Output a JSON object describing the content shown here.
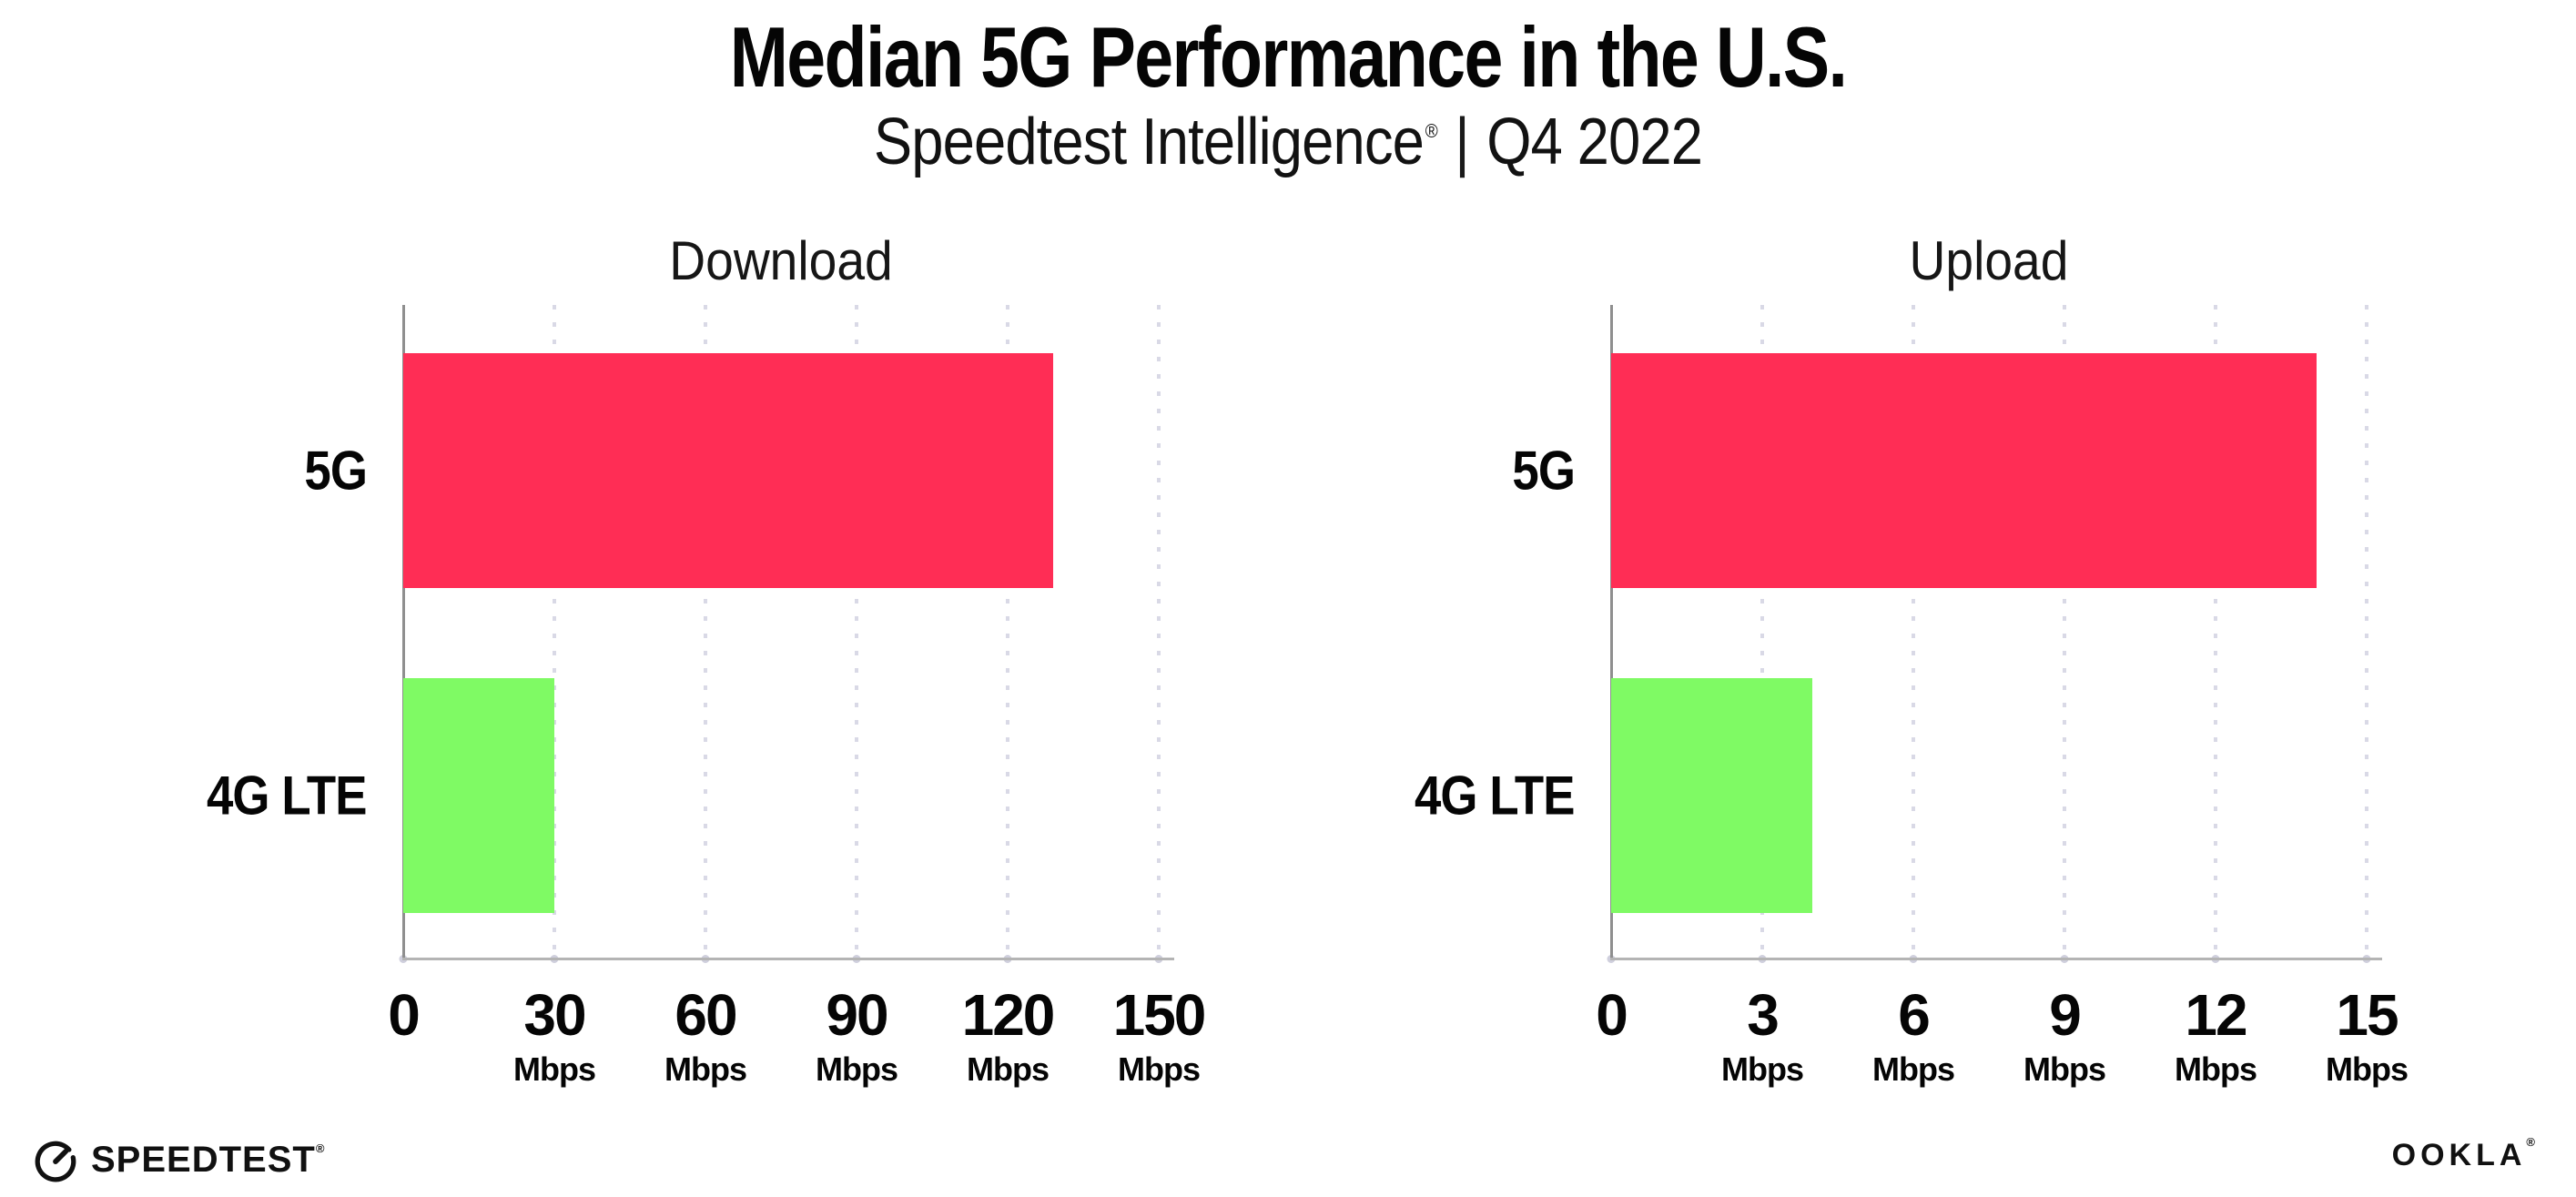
{
  "header": {
    "title": "Median 5G Performance in the U.S.",
    "subtitle_brand": "Speedtest Intelligence",
    "subtitle_reg": "®",
    "subtitle_separator": "|",
    "subtitle_period": "Q4 2022"
  },
  "chart_data": [
    {
      "type": "bar",
      "orientation": "horizontal",
      "title": "Download",
      "categories": [
        "5G",
        "4G LTE"
      ],
      "values": [
        129,
        30
      ],
      "unit": "Mbps",
      "xlabel": "",
      "ylabel": "",
      "xlim": [
        0,
        150
      ],
      "xticks": [
        0,
        30,
        60,
        90,
        120,
        150
      ],
      "bar_colors": [
        "#FF2D55",
        "#7FFA64"
      ],
      "grid": "dotted vertical gridlines at ticks",
      "legend_position": "none"
    },
    {
      "type": "bar",
      "orientation": "horizontal",
      "title": "Upload",
      "categories": [
        "5G",
        "4G LTE"
      ],
      "values": [
        14,
        4
      ],
      "unit": "Mbps",
      "xlabel": "",
      "ylabel": "",
      "xlim": [
        0,
        15
      ],
      "xticks": [
        0,
        3,
        6,
        9,
        12,
        15
      ],
      "bar_colors": [
        "#FF2D55",
        "#7FFA64"
      ],
      "grid": "dotted vertical gridlines at ticks",
      "legend_position": "none"
    }
  ],
  "footer": {
    "speedtest_logo_text": "SPEEDTEST",
    "speedtest_reg": "®",
    "ookla_logo_text": "OOKLA",
    "ookla_reg": "®"
  },
  "colors": {
    "bar_5g": "#FF2D55",
    "bar_4g_lte": "#7FFA64",
    "gridline": "#D9D9E6",
    "y_axis_line": "#8F8F8F",
    "x_axis_line": "#B4B4B4",
    "text": "#050505"
  }
}
